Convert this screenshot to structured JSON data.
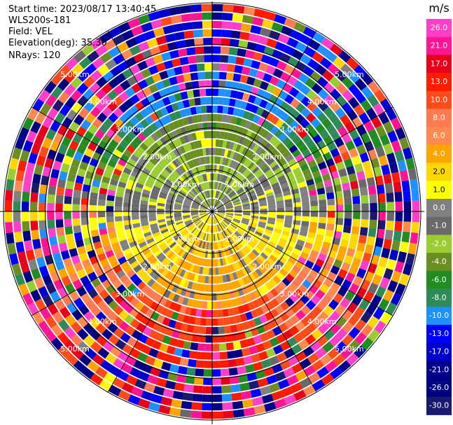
{
  "header": {
    "start_time": "Start time: 2023/08/17 13:40:45",
    "instrument": "WLS200s-181",
    "field": "Field: VEL",
    "elevation": "Elevation(deg): 35.30",
    "nrays": "NRays: 120"
  },
  "chart_data": {
    "type": "ppi",
    "field": "VEL",
    "units": "m/s",
    "nrays": 120,
    "range_ring_labels": [
      "1.00km",
      "2.00km",
      "3.00km",
      "4.00km",
      "5.00km"
    ],
    "colorbar": {
      "label": "m/s",
      "ticks": [
        "26.0",
        "21.0",
        "17.0",
        "13.0",
        "10.0",
        "8.0",
        "6.0",
        "4.0",
        "2.0",
        "1.0",
        "0.0",
        "-1.0",
        "-2.0",
        "-4.0",
        "-6.0",
        "-8.0",
        "-10.0",
        "-13.0",
        "-17.0",
        "-21.0",
        "-26.0",
        "-30.0"
      ],
      "colors": [
        "#ff3fc8",
        "#ff1493",
        "#e8001a",
        "#ff1a00",
        "#ff4a1a",
        "#ff7a50",
        "#ff8a50",
        "#ffa500",
        "#ffd700",
        "#ffff00",
        "#808080",
        "#696969",
        "#9acd32",
        "#6b8e23",
        "#228b22",
        "#2e8b57",
        "#1e90ff",
        "#0000ff",
        "#0000cd",
        "#00008b",
        "#000080",
        "#191970"
      ]
    }
  }
}
